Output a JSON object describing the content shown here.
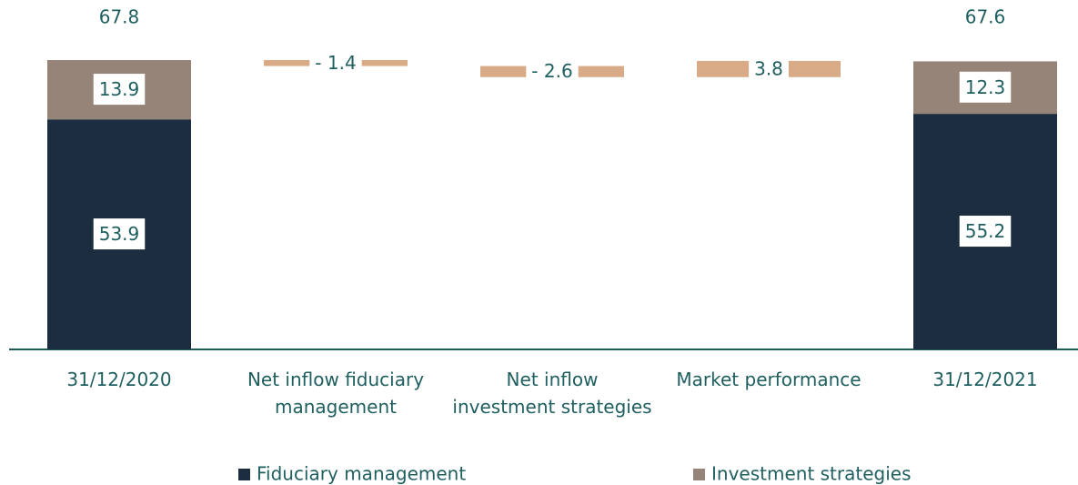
{
  "chart_data": {
    "type": "waterfall",
    "categories": [
      "31/12/2020",
      "Net inflow fiduciary\nmanagement",
      "Net inflow\ninvestment strategies",
      "Market performance",
      "31/12/2021"
    ],
    "series": [
      {
        "name": "Fiduciary management",
        "color": "#1b2d3e",
        "values": [
          53.9,
          null,
          null,
          null,
          55.2
        ]
      },
      {
        "name": "Investment strategies",
        "color": "#968479",
        "values": [
          13.9,
          null,
          null,
          null,
          12.3
        ]
      }
    ],
    "totals": [
      67.8,
      null,
      null,
      null,
      67.6
    ],
    "changes": {
      "color": "#d9aa86",
      "values": [
        null,
        -1.4,
        -2.6,
        3.8,
        null
      ],
      "value_labels": [
        null,
        "- 1.4",
        "- 2.6",
        "3.8",
        null
      ]
    }
  }
}
